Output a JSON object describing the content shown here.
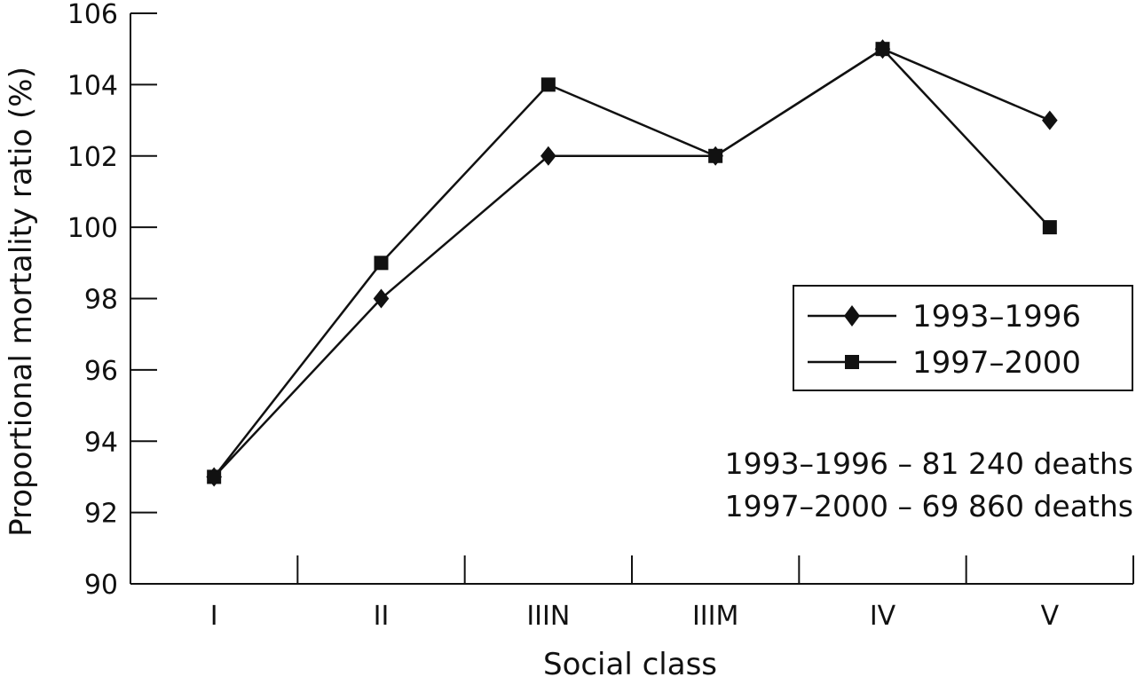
{
  "chart_data": {
    "type": "line",
    "categories": [
      "I",
      "II",
      "IIIN",
      "IIIM",
      "IV",
      "V"
    ],
    "series": [
      {
        "name": "1993–1996",
        "marker": "diamond",
        "values": [
          93,
          98,
          102,
          102,
          105,
          103
        ]
      },
      {
        "name": "1997–2000",
        "marker": "square",
        "values": [
          93,
          99,
          104,
          102,
          105,
          100
        ]
      }
    ],
    "xlabel": "Social class",
    "ylabel": "Proportional mortality ratio (%)",
    "ylim": [
      90,
      106
    ],
    "yticks": [
      "90",
      "92",
      "94",
      "96",
      "98",
      "100",
      "102",
      "104",
      "106"
    ],
    "grid": false,
    "legend_position": "right",
    "annotations": [
      "1993–1996 – 81 240 deaths",
      "1997–2000 – 69 860 deaths"
    ],
    "colors": {
      "line": "#111111",
      "marker": "#111111"
    }
  }
}
